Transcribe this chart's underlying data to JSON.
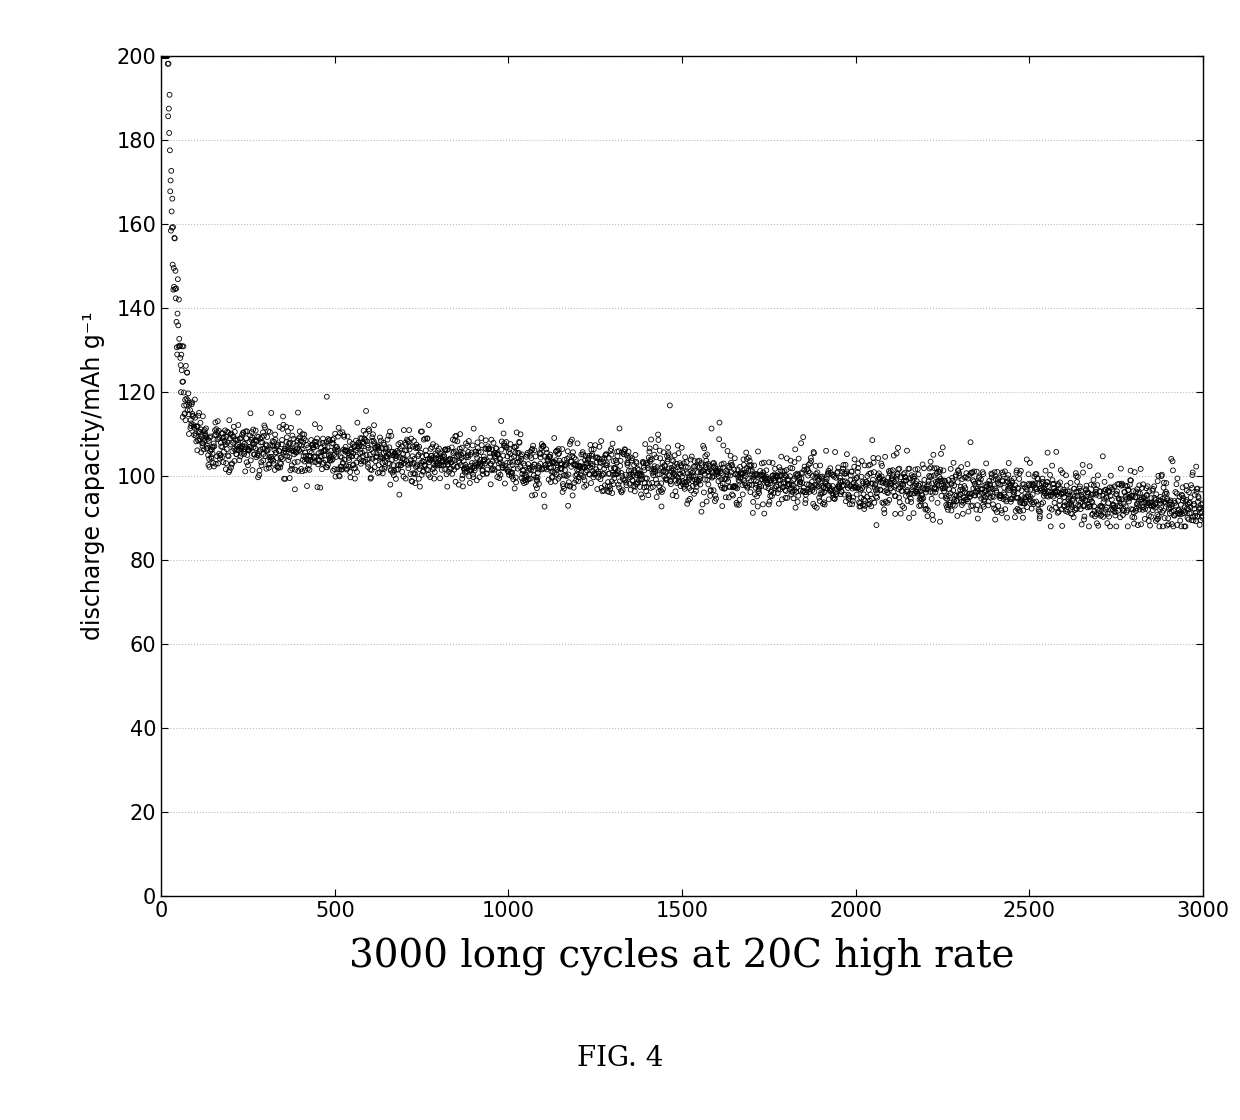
{
  "title": "",
  "xlabel": "3000 long cycles at 20C high rate",
  "ylabel": "discharge capacity/mAh g⁻¹",
  "xlim": [
    0,
    3000
  ],
  "ylim": [
    0,
    200
  ],
  "xticks": [
    0,
    500,
    1000,
    1500,
    2000,
    2500,
    3000
  ],
  "yticks": [
    0,
    20,
    40,
    60,
    80,
    100,
    120,
    140,
    160,
    180,
    200
  ],
  "marker_color": "#000000",
  "marker_facecolor": "none",
  "marker_size": 3.5,
  "marker_linewidth": 0.6,
  "grid_color": "#bbbbbb",
  "grid_linestyle": ":",
  "background_color": "#ffffff",
  "fig_caption": "FIG. 4",
  "xlabel_fontsize": 28,
  "ylabel_fontsize": 17,
  "tick_fontsize": 15,
  "caption_fontsize": 20,
  "n_cycles": 3000,
  "initial_capacity": 190,
  "fast_decay_tau": 25,
  "slow_start": 108,
  "slow_slope": 0.005,
  "noise_early_std": 5,
  "noise_late_std": 3,
  "clip_min": 88,
  "clip_max": 200
}
